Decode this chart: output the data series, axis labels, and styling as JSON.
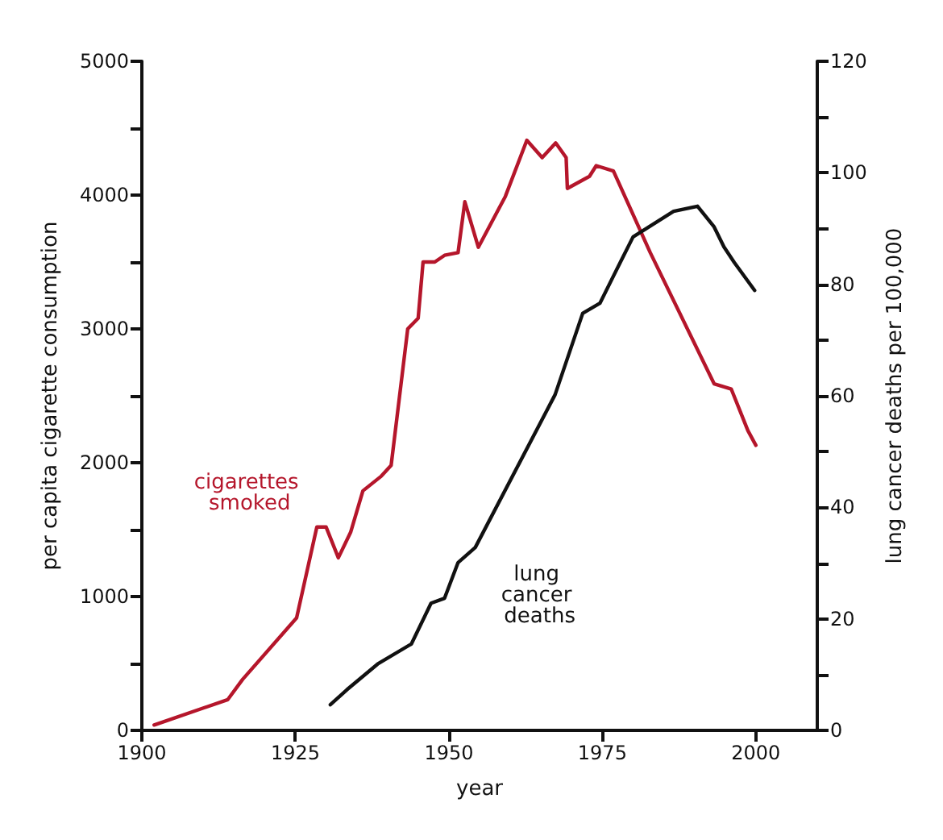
{
  "chart_data": {
    "type": "line",
    "xlabel": "year",
    "ylabel": "per capita cigarette consumption",
    "y2label": "lung cancer deaths per 100,000",
    "xlim": [
      1900,
      2010
    ],
    "xticks": [
      1900,
      1925,
      1950,
      1975,
      2000
    ],
    "ylim": [
      0,
      5000
    ],
    "yticks": [
      0,
      {
        "value": 500,
        "label": null
      },
      1000,
      {
        "value": 1500,
        "label": null
      },
      2000,
      {
        "value": 2500,
        "label": null
      },
      3000,
      {
        "value": 3500,
        "label": null
      },
      4000,
      {
        "value": 4500,
        "label": null
      },
      5000
    ],
    "y2lim": [
      0,
      120
    ],
    "y2ticks": [
      0,
      {
        "value": 10,
        "label": null
      },
      20,
      {
        "value": 30,
        "label": null
      },
      40,
      {
        "value": 50,
        "label": null
      },
      60,
      {
        "value": 70,
        "label": null
      },
      80,
      {
        "value": 90,
        "label": null
      },
      100,
      {
        "value": 110,
        "label": null
      },
      120
    ],
    "grid": false,
    "legend": false,
    "marker": "none",
    "line_style": "solid",
    "series": [
      {
        "name": "cigarettes smoked",
        "color": "#b5162b",
        "x": [
          1902,
          1914,
          1916.4,
          1925.2,
          1928.5,
          1930,
          1932,
          1934,
          1936,
          1939,
          1940.6,
          1943.3,
          1945,
          1945.8,
          1947.7,
          1949.3,
          1951.5,
          1952.6,
          1954.8,
          1959.2,
          1962.7,
          1965.2,
          1967.4,
          1969.1,
          1969.3,
          1972.9,
          1974,
          1976.8,
          1982.8,
          1993.2,
          1996,
          1998.7,
          2000
        ],
        "values": [
          40,
          230,
          380,
          840,
          1520,
          1520,
          1290,
          1480,
          1790,
          1900,
          1980,
          3000,
          3080,
          3500,
          3500,
          3550,
          3570,
          3950,
          3610,
          3990,
          4410,
          4280,
          4390,
          4280,
          4050,
          4140,
          4220,
          4180,
          3570,
          2590,
          2550,
          2240,
          2130
        ]
      },
      {
        "name": "lung cancer deaths",
        "color": "#111111",
        "axis": "y2",
        "x": [
          1930.7,
          1933.4,
          1938.4,
          1943.9,
          1947.1,
          1949.3,
          1951.5,
          1954.3,
          1967.3,
          1971.8,
          1974.6,
          1977.9,
          1980,
          1986.6,
          1990.5,
          1993.2,
          1994.8,
          1996.5,
          1999.8
        ],
        "values": [
          4.6,
          7.3,
          11.9,
          15.5,
          22.8,
          23.7,
          30.1,
          32.8,
          60.2,
          74.8,
          76.6,
          83.9,
          88.5,
          93.1,
          94,
          90.3,
          86.7,
          83.9,
          78.9
        ]
      }
    ]
  }
}
